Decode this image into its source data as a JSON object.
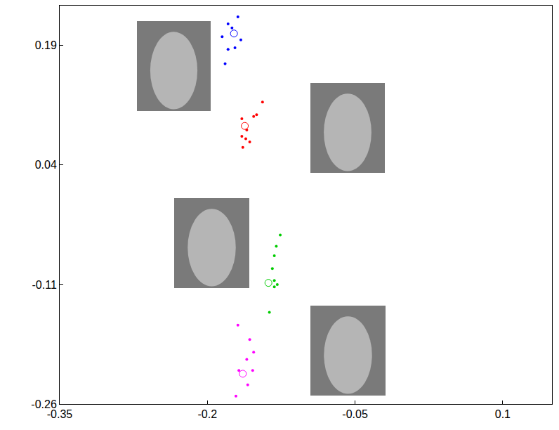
{
  "chart_data": {
    "type": "scatter",
    "xlim": [
      -0.35,
      0.15
    ],
    "ylim": [
      -0.26,
      0.24
    ],
    "xticks": [
      -0.35,
      -0.2,
      -0.05,
      0.1
    ],
    "yticks": [
      -0.26,
      -0.11,
      0.04,
      0.19
    ],
    "grid": false,
    "series": [
      {
        "color": "#0000ff",
        "marker": "dot",
        "x": [
          -0.169,
          -0.179,
          -0.175,
          -0.185,
          -0.166,
          -0.172,
          -0.179,
          -0.182
        ],
        "y": [
          0.226,
          0.217,
          0.212,
          0.201,
          0.197,
          0.187,
          0.185,
          0.167
        ],
        "center_x": -0.173,
        "center_y": 0.205
      },
      {
        "color": "#ff0000",
        "marker": "dot",
        "x": [
          -0.144,
          -0.15,
          -0.153,
          -0.165,
          -0.16,
          -0.165,
          -0.161,
          -0.157,
          -0.164
        ],
        "y": [
          0.119,
          0.103,
          0.101,
          0.098,
          0.084,
          0.076,
          0.073,
          0.069,
          0.062
        ],
        "center_x": -0.162,
        "center_y": 0.089
      },
      {
        "color": "#00cc00",
        "marker": "dot",
        "x": [
          -0.126,
          -0.13,
          -0.132,
          -0.134,
          -0.132,
          -0.129,
          -0.132,
          -0.137
        ],
        "y": [
          -0.048,
          -0.062,
          -0.074,
          -0.09,
          -0.105,
          -0.11,
          -0.113,
          -0.145
        ],
        "center_x": -0.138,
        "center_y": -0.108
      },
      {
        "color": "#ff00ff",
        "marker": "dot",
        "x": [
          -0.169,
          -0.157,
          -0.153,
          -0.16,
          -0.154,
          -0.168,
          -0.159,
          -0.171
        ],
        "y": [
          -0.161,
          -0.179,
          -0.195,
          -0.204,
          -0.218,
          -0.218,
          -0.236,
          -0.25
        ],
        "center_x": -0.164,
        "center_y": -0.222
      }
    ]
  }
}
